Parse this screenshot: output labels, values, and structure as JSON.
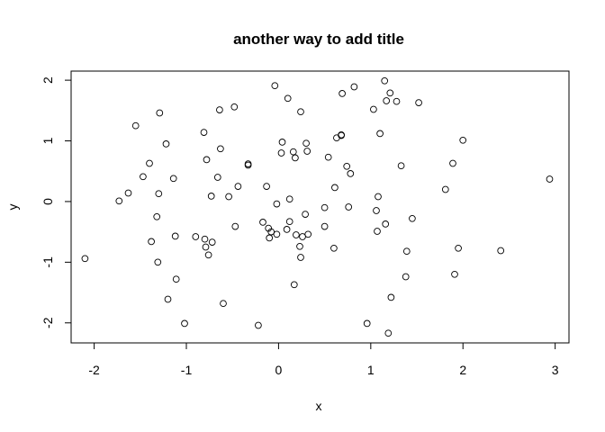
{
  "chart_data": {
    "type": "scatter",
    "title": "another way to add title",
    "xlabel": "x",
    "ylabel": "y",
    "xlim": [
      -2.25,
      3.15
    ],
    "ylim": [
      -2.33,
      2.15
    ],
    "xticks": [
      -2,
      -1,
      0,
      1,
      2,
      3
    ],
    "yticks": [
      -2,
      -1,
      0,
      1,
      2
    ],
    "grid": false,
    "legend": "none",
    "marker": "open-circle",
    "series": [
      {
        "points": [
          [
            -2.1,
            -0.94
          ],
          [
            -1.73,
            0.01
          ],
          [
            -1.63,
            0.14
          ],
          [
            -1.55,
            1.25
          ],
          [
            -1.47,
            0.41
          ],
          [
            -1.4,
            0.63
          ],
          [
            -1.38,
            -0.66
          ],
          [
            -1.32,
            -0.25
          ],
          [
            -1.31,
            -1.0
          ],
          [
            -1.3,
            0.13
          ],
          [
            -1.29,
            1.46
          ],
          [
            -1.22,
            0.95
          ],
          [
            -1.2,
            -1.61
          ],
          [
            -1.14,
            0.38
          ],
          [
            -1.12,
            -0.57
          ],
          [
            -1.11,
            -1.28
          ],
          [
            -1.02,
            -2.01
          ],
          [
            -0.9,
            -0.58
          ],
          [
            -0.81,
            1.14
          ],
          [
            -0.8,
            -0.62
          ],
          [
            -0.79,
            -0.75
          ],
          [
            -0.78,
            0.69
          ],
          [
            -0.76,
            -0.88
          ],
          [
            -0.73,
            0.09
          ],
          [
            -0.72,
            -0.67
          ],
          [
            -0.66,
            0.4
          ],
          [
            -0.64,
            1.51
          ],
          [
            -0.63,
            0.87
          ],
          [
            -0.6,
            -1.68
          ],
          [
            -0.54,
            0.08
          ],
          [
            -0.48,
            1.56
          ],
          [
            -0.47,
            -0.41
          ],
          [
            -0.44,
            0.25
          ],
          [
            -0.33,
            0.6
          ],
          [
            -0.33,
            0.62
          ],
          [
            -0.22,
            -2.04
          ],
          [
            -0.17,
            -0.34
          ],
          [
            -0.13,
            0.25
          ],
          [
            -0.11,
            -0.44
          ],
          [
            -0.1,
            -0.6
          ],
          [
            -0.08,
            -0.5
          ],
          [
            -0.04,
            1.91
          ],
          [
            -0.02,
            -0.04
          ],
          [
            -0.02,
            -0.54
          ],
          [
            0.03,
            0.8
          ],
          [
            0.04,
            0.98
          ],
          [
            0.09,
            -0.46
          ],
          [
            0.1,
            1.7
          ],
          [
            0.12,
            -0.33
          ],
          [
            0.12,
            0.04
          ],
          [
            0.16,
            0.82
          ],
          [
            0.17,
            -1.37
          ],
          [
            0.18,
            0.72
          ],
          [
            0.19,
            -0.55
          ],
          [
            0.23,
            -0.74
          ],
          [
            0.24,
            -0.92
          ],
          [
            0.24,
            1.48
          ],
          [
            0.26,
            -0.58
          ],
          [
            0.29,
            -0.21
          ],
          [
            0.3,
            0.96
          ],
          [
            0.31,
            0.83
          ],
          [
            0.32,
            -0.54
          ],
          [
            0.5,
            -0.1
          ],
          [
            0.5,
            -0.41
          ],
          [
            0.54,
            0.73
          ],
          [
            0.6,
            -0.77
          ],
          [
            0.61,
            0.23
          ],
          [
            0.63,
            1.05
          ],
          [
            0.68,
            1.09
          ],
          [
            0.68,
            1.1
          ],
          [
            0.69,
            1.78
          ],
          [
            0.74,
            0.58
          ],
          [
            0.76,
            -0.09
          ],
          [
            0.78,
            0.46
          ],
          [
            0.82,
            1.89
          ],
          [
            0.96,
            -2.01
          ],
          [
            1.03,
            1.52
          ],
          [
            1.06,
            -0.15
          ],
          [
            1.07,
            -0.49
          ],
          [
            1.08,
            0.08
          ],
          [
            1.1,
            1.12
          ],
          [
            1.15,
            1.99
          ],
          [
            1.16,
            -0.37
          ],
          [
            1.17,
            1.66
          ],
          [
            1.19,
            -2.17
          ],
          [
            1.21,
            1.79
          ],
          [
            1.22,
            -1.58
          ],
          [
            1.28,
            1.65
          ],
          [
            1.33,
            0.59
          ],
          [
            1.38,
            -1.24
          ],
          [
            1.39,
            -0.82
          ],
          [
            1.45,
            -0.28
          ],
          [
            1.52,
            1.63
          ],
          [
            1.81,
            0.2
          ],
          [
            1.89,
            0.63
          ],
          [
            1.91,
            -1.2
          ],
          [
            1.95,
            -0.77
          ],
          [
            2.0,
            1.01
          ],
          [
            2.41,
            -0.81
          ],
          [
            2.94,
            0.37
          ]
        ]
      }
    ]
  }
}
